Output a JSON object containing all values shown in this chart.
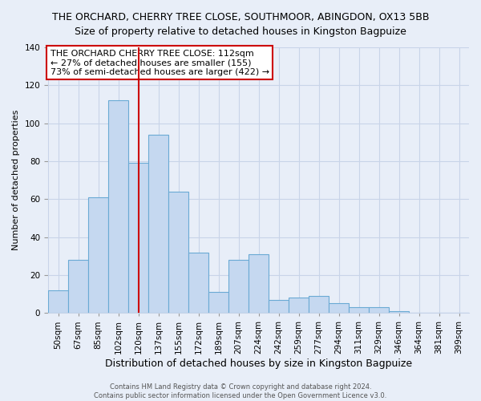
{
  "title": "THE ORCHARD, CHERRY TREE CLOSE, SOUTHMOOR, ABINGDON, OX13 5BB",
  "subtitle": "Size of property relative to detached houses in Kingston Bagpuize",
  "xlabel": "Distribution of detached houses by size in Kingston Bagpuize",
  "ylabel": "Number of detached properties",
  "bar_labels": [
    "50sqm",
    "67sqm",
    "85sqm",
    "102sqm",
    "120sqm",
    "137sqm",
    "155sqm",
    "172sqm",
    "189sqm",
    "207sqm",
    "224sqm",
    "242sqm",
    "259sqm",
    "277sqm",
    "294sqm",
    "311sqm",
    "329sqm",
    "346sqm",
    "364sqm",
    "381sqm",
    "399sqm"
  ],
  "bar_values": [
    12,
    28,
    61,
    112,
    79,
    94,
    64,
    32,
    11,
    28,
    31,
    7,
    8,
    9,
    5,
    3,
    3,
    1,
    0,
    0,
    0
  ],
  "bar_color": "#c5d8f0",
  "bar_edge_color": "#6aaad4",
  "vline_color": "#cc0000",
  "vline_index": 4,
  "ylim": [
    0,
    140
  ],
  "yticks": [
    0,
    20,
    40,
    60,
    80,
    100,
    120,
    140
  ],
  "annotation_title": "THE ORCHARD CHERRY TREE CLOSE: 112sqm",
  "annotation_line1": "← 27% of detached houses are smaller (155)",
  "annotation_line2": "73% of semi-detached houses are larger (422) →",
  "footer1": "Contains HM Land Registry data © Crown copyright and database right 2024.",
  "footer2": "Contains public sector information licensed under the Open Government Licence v3.0.",
  "background_color": "#e8eef8",
  "plot_bg_color": "#e8eef8",
  "grid_color": "#c8d4e8",
  "title_fontsize": 9,
  "subtitle_fontsize": 9,
  "ylabel_fontsize": 8,
  "xlabel_fontsize": 9,
  "tick_fontsize": 7.5,
  "footer_fontsize": 6,
  "ann_fontsize": 8
}
